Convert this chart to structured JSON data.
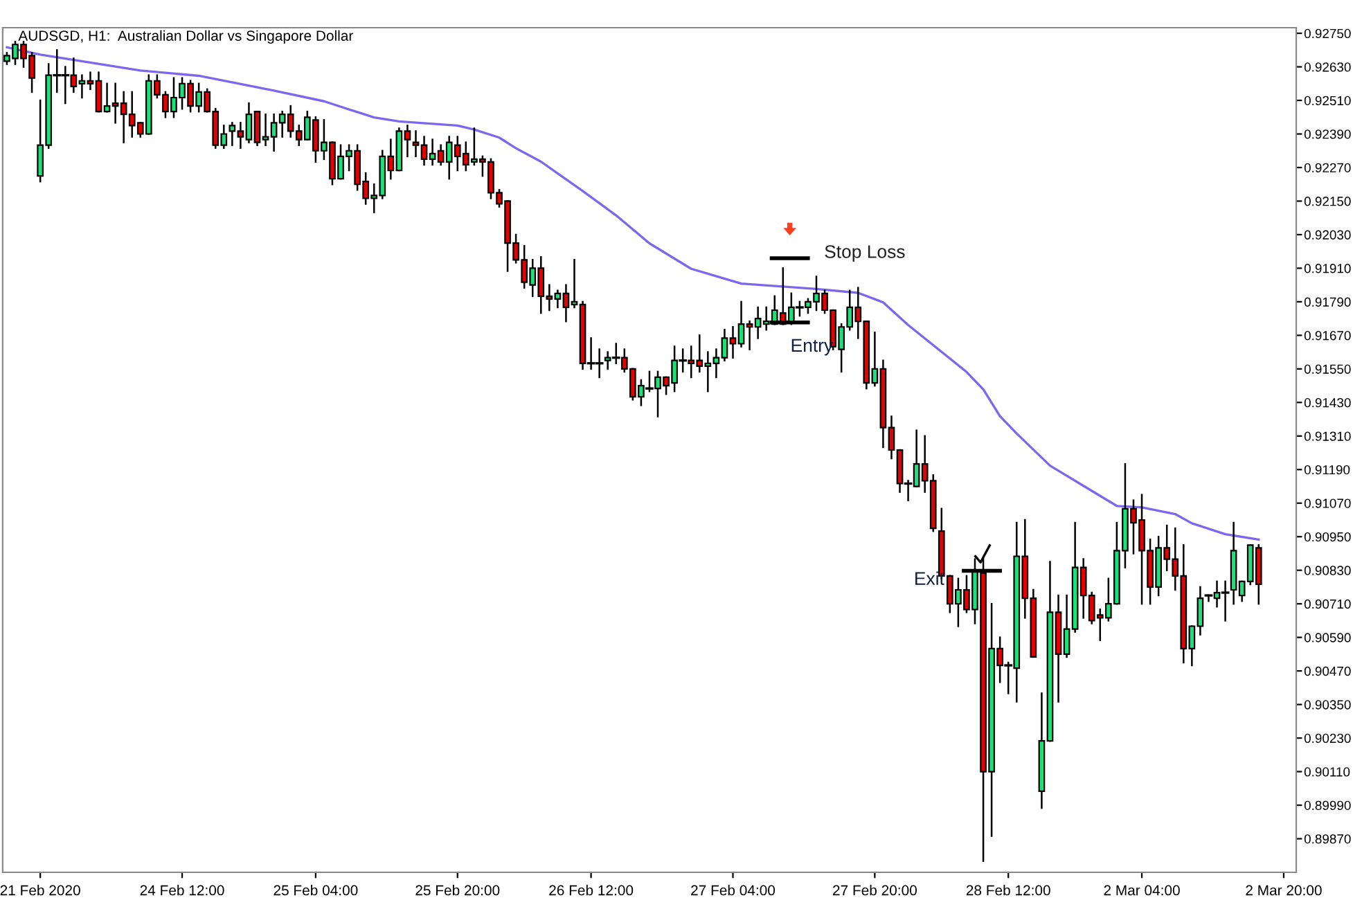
{
  "chart_data": {
    "type": "candlestick",
    "title": "AUDSGD, H1:  Australian Dollar vs Singapore Dollar",
    "categories": [
      null,
      null,
      null,
      null,
      "21 Feb 2020",
      null,
      null,
      null,
      null,
      null,
      null,
      null,
      null,
      null,
      null,
      null,
      null,
      null,
      null,
      null,
      null,
      "24 Feb 12:00",
      null,
      null,
      null,
      null,
      null,
      null,
      null,
      null,
      null,
      null,
      null,
      null,
      null,
      null,
      null,
      "25 Feb 04:00",
      null,
      null,
      null,
      null,
      null,
      null,
      null,
      null,
      null,
      null,
      null,
      null,
      null,
      null,
      null,
      null,
      "25 Feb 20:00",
      null,
      null,
      null,
      null,
      null,
      null,
      null,
      null,
      null,
      null,
      null,
      null,
      null,
      null,
      null,
      "26 Feb 12:00",
      null,
      null,
      null,
      null,
      null,
      null,
      null,
      null,
      null,
      null,
      null,
      null,
      null,
      null,
      null,
      null,
      "27 Feb 04:00",
      null,
      null,
      null,
      null,
      null,
      null,
      null,
      null,
      null,
      null,
      null,
      null,
      null,
      null,
      null,
      null,
      "27 Feb 20:00",
      null,
      null,
      null,
      null,
      null,
      null,
      null,
      null,
      null,
      null,
      null,
      null,
      null,
      null,
      null,
      "28 Feb 12:00",
      null,
      null,
      null,
      null,
      null,
      null,
      null,
      null,
      null,
      null,
      null,
      null,
      null,
      null,
      null,
      "2 Mar 04:00",
      null,
      null,
      null,
      null,
      null,
      null,
      null,
      null,
      null,
      null,
      null,
      null,
      null,
      null,
      null,
      null,
      "2 Mar 20:00",
      null
    ],
    "colors": [
      "#1ee07a",
      "#1ee07a",
      "#e60000",
      "#e60000",
      "#1ee07a",
      "#1ee07a",
      "#000000",
      "#000000",
      "#e60000",
      "#1ee07a",
      "#e60000",
      "#e60000",
      "#1ee07a",
      "#e60000",
      "#e60000",
      "#e60000",
      "#e60000",
      "#1ee07a",
      "#e60000",
      "#e60000",
      "#1ee07a",
      "#1ee07a",
      "#e60000",
      "#1ee07a",
      "#e60000",
      "#e60000",
      "#1ee07a",
      "#1ee07a",
      "#e60000",
      "#1ee07a",
      "#e60000",
      "#1ee07a",
      "#1ee07a",
      "#1ee07a",
      "#e60000",
      "#e60000",
      "#1ee07a",
      "#e60000",
      "#1ee07a",
      "#e60000",
      "#1ee07a",
      "#1ee07a",
      "#e60000",
      "#e60000",
      "#1ee07a",
      "#1ee07a",
      "#e60000",
      "#1ee07a",
      "#e60000",
      "#e60000",
      "#e60000",
      "#1ee07a",
      "#e60000",
      "#1ee07a",
      "#e60000",
      "#e60000",
      "#1ee07a",
      "#e60000",
      "#e60000",
      "#e60000",
      "#e60000",
      "#e60000",
      "#e60000",
      "#1ee07a",
      "#e60000",
      "#e60000",
      "#1ee07a",
      "#e60000",
      "#1ee07a",
      "#e60000",
      "#000000",
      "#000000",
      "#1ee07a",
      "#000000",
      "#e60000",
      "#e60000",
      "#1ee07a",
      "#000000",
      "#1ee07a",
      "#e60000",
      "#1ee07a",
      "#000000",
      "#e60000",
      "#e60000",
      "#1ee07a",
      "#1ee07a",
      "#1ee07a",
      "#e60000",
      "#1ee07a",
      "#e60000",
      "#1ee07a",
      "#1ee07a",
      "#1ee07a",
      "#e60000",
      "#1ee07a",
      "#000000",
      "#1ee07a",
      "#1ee07a",
      "#e60000",
      "#e60000",
      "#1ee07a",
      "#1ee07a",
      "#e60000",
      "#e60000",
      "#1ee07a",
      "#e60000",
      "#e60000",
      "#e60000",
      "#000000",
      "#1ee07a",
      "#e60000",
      "#e60000",
      "#e60000",
      "#e60000",
      "#1ee07a",
      "#e60000",
      "#1ee07a",
      "#e60000",
      "#1ee07a",
      "#e60000",
      "#000000",
      "#1ee07a",
      "#e60000",
      "#e60000",
      "#1ee07a",
      "#1ee07a",
      "#e60000",
      "#1ee07a",
      "#1ee07a",
      "#e60000",
      "#e60000",
      "#e60000",
      "#1ee07a",
      "#1ee07a",
      "#1ee07a",
      "#e60000",
      "#e60000",
      "#e60000",
      "#1ee07a",
      "#e60000",
      "#e60000",
      "#e60000",
      "#1ee07a",
      "#1ee07a",
      "#000000",
      "#1ee07a",
      "#000000",
      "#1ee07a",
      "#1ee07a",
      "#1ee07a",
      "#e60000",
      null,
      null,
      null,
      null
    ],
    "series": [
      {
        "type": "line",
        "color": "#7b68ee",
        "values": [
          0.927,
          null,
          null,
          null,
          0.92674,
          null,
          null,
          null,
          null,
          null,
          null,
          null,
          null,
          null,
          null,
          null,
          0.92617,
          null,
          null,
          null,
          null,
          null,
          null,
          0.92598,
          null,
          null,
          null,
          null,
          null,
          null,
          null,
          null,
          0.92545,
          null,
          null,
          null,
          null,
          null,
          0.92507,
          null,
          null,
          null,
          null,
          null,
          0.92449,
          null,
          null,
          0.92435,
          null,
          null,
          null,
          null,
          null,
          null,
          0.9242,
          null,
          0.92406,
          null,
          null,
          0.92377,
          null,
          0.92339,
          null,
          null,
          0.92291,
          null,
          null,
          null,
          null,
          0.92186,
          null,
          null,
          null,
          0.92099,
          null,
          null,
          null,
          0.91999,
          null,
          null,
          null,
          null,
          0.91908,
          null,
          null,
          null,
          null,
          null,
          0.91855,
          null,
          null,
          null,
          null,
          null,
          null,
          null,
          null,
          0.91836,
          null,
          null,
          null,
          null,
          0.91822,
          null,
          null,
          0.91788,
          null,
          null,
          0.91707,
          null,
          null,
          0.91635,
          null,
          null,
          null,
          0.91539,
          null,
          0.91477,
          null,
          0.91381,
          null,
          0.91319,
          null,
          null,
          null,
          0.91204,
          null,
          null,
          null,
          0.91132,
          null,
          null,
          null,
          0.9106,
          null,
          null,
          0.91055,
          null,
          null,
          null,
          0.91031,
          null,
          0.90998,
          null,
          null,
          null,
          0.90959,
          null,
          null,
          null,
          0.9094,
          null,
          null,
          null,
          null
        ]
      }
    ],
    "ohlc": [
      [
        0.9265,
        0.9268,
        0.9264,
        0.9267
      ],
      [
        0.9266,
        0.9272,
        0.9264,
        0.9271
      ],
      [
        0.9271,
        0.9272,
        0.9263,
        0.9266
      ],
      [
        0.9267,
        0.9268,
        0.9254,
        0.9259
      ],
      [
        0.9224,
        0.9251,
        0.9222,
        0.9235
      ],
      [
        0.9235,
        0.9264,
        0.9234,
        0.926
      ],
      [
        0.926,
        0.9269,
        0.9254,
        0.926
      ],
      [
        0.926,
        0.9263,
        0.925,
        0.926
      ],
      [
        0.926,
        0.9266,
        0.9254,
        0.9256
      ],
      [
        0.9257,
        0.926,
        0.9252,
        0.9258
      ],
      [
        0.9258,
        0.9261,
        0.9255,
        0.9257
      ],
      [
        0.9258,
        0.9261,
        0.9247,
        0.9247
      ],
      [
        0.9247,
        0.9257,
        0.9247,
        0.9249
      ],
      [
        0.925,
        0.9257,
        0.9243,
        0.9249
      ],
      [
        0.925,
        0.9254,
        0.9236,
        0.9246
      ],
      [
        0.9246,
        0.9254,
        0.9238,
        0.9242
      ],
      [
        0.9243,
        0.9243,
        0.9238,
        0.9239
      ],
      [
        0.9239,
        0.926,
        0.9239,
        0.9258
      ],
      [
        0.9258,
        0.926,
        0.9252,
        0.9253
      ],
      [
        0.9253,
        0.9254,
        0.9245,
        0.9247
      ],
      [
        0.9247,
        0.9259,
        0.9245,
        0.9252
      ],
      [
        0.9252,
        0.9259,
        0.9248,
        0.9257
      ],
      [
        0.9257,
        0.9258,
        0.9247,
        0.9249
      ],
      [
        0.9249,
        0.9257,
        0.9247,
        0.9254
      ],
      [
        0.9254,
        0.9255,
        0.9247,
        0.9247
      ],
      [
        0.9247,
        0.9248,
        0.9234,
        0.9235
      ],
      [
        0.9235,
        0.9242,
        0.9234,
        0.9239
      ],
      [
        0.924,
        0.9243,
        0.9235,
        0.9242
      ],
      [
        0.924,
        0.9243,
        0.9234,
        0.9238
      ],
      [
        0.9237,
        0.925,
        0.9236,
        0.9246
      ],
      [
        0.9247,
        0.9247,
        0.9235,
        0.9236
      ],
      [
        0.9237,
        0.9246,
        0.9235,
        0.9238
      ],
      [
        0.9238,
        0.9246,
        0.9233,
        0.9243
      ],
      [
        0.9243,
        0.9247,
        0.9238,
        0.9246
      ],
      [
        0.9246,
        0.9249,
        0.9238,
        0.924
      ],
      [
        0.924,
        0.9242,
        0.9235,
        0.9237
      ],
      [
        0.9237,
        0.9247,
        0.9237,
        0.9245
      ],
      [
        0.9244,
        0.9245,
        0.9229,
        0.9233
      ],
      [
        0.9233,
        0.9244,
        0.923,
        0.9236
      ],
      [
        0.9236,
        0.9236,
        0.9221,
        0.9223
      ],
      [
        0.9223,
        0.9235,
        0.9223,
        0.9231
      ],
      [
        0.9231,
        0.9235,
        0.9226,
        0.9233
      ],
      [
        0.9233,
        0.9235,
        0.9219,
        0.9221
      ],
      [
        0.9222,
        0.9225,
        0.9214,
        0.9216
      ],
      [
        0.9216,
        0.9221,
        0.9211,
        0.9217
      ],
      [
        0.9217,
        0.9233,
        0.9216,
        0.9231
      ],
      [
        0.9231,
        0.9237,
        0.9223,
        0.9226
      ],
      [
        0.9226,
        0.9241,
        0.9226,
        0.924
      ],
      [
        0.924,
        0.9242,
        0.9231,
        0.9237
      ],
      [
        0.9236,
        0.924,
        0.9231,
        0.9235
      ],
      [
        0.9235,
        0.9238,
        0.9228,
        0.923
      ],
      [
        0.923,
        0.9237,
        0.9228,
        0.9232
      ],
      [
        0.9233,
        0.9235,
        0.9228,
        0.9229
      ],
      [
        0.9229,
        0.9238,
        0.9223,
        0.9236
      ],
      [
        0.9235,
        0.9238,
        0.9226,
        0.9231
      ],
      [
        0.9232,
        0.9236,
        0.9226,
        0.9228
      ],
      [
        0.9229,
        0.9241,
        0.9228,
        0.923
      ],
      [
        0.923,
        0.9231,
        0.9224,
        0.9229
      ],
      [
        0.9229,
        0.923,
        0.9216,
        0.9218
      ],
      [
        0.9218,
        0.9219,
        0.9213,
        0.9214
      ],
      [
        0.9215,
        0.9215,
        0.919,
        0.92
      ],
      [
        0.92,
        0.9203,
        0.9193,
        0.9194
      ],
      [
        0.9194,
        0.9199,
        0.9184,
        0.9186
      ],
      [
        0.9185,
        0.9194,
        0.9181,
        0.9191
      ],
      [
        0.9191,
        0.9195,
        0.9175,
        0.9181
      ],
      [
        0.9181,
        0.9185,
        0.9176,
        0.918
      ],
      [
        0.918,
        0.9183,
        0.9177,
        0.9182
      ],
      [
        0.9182,
        0.9185,
        0.9172,
        0.9177
      ],
      [
        0.9178,
        0.9194,
        0.9177,
        0.9179
      ],
      [
        0.9178,
        0.9179,
        0.9155,
        0.9157
      ],
      [
        0.9157,
        0.9166,
        0.9155,
        0.9157
      ],
      [
        0.9157,
        0.9162,
        0.9152,
        0.9157
      ],
      [
        0.9158,
        0.9161,
        0.9155,
        0.9159
      ],
      [
        0.9159,
        0.9164,
        0.9157,
        0.9159
      ],
      [
        0.9159,
        0.9162,
        0.9154,
        0.9155
      ],
      [
        0.9155,
        0.9155,
        0.9144,
        0.9145
      ],
      [
        0.9145,
        0.9151,
        0.9142,
        0.9149
      ],
      [
        0.9148,
        0.9154,
        0.9147,
        0.9148
      ],
      [
        0.9148,
        0.9154,
        0.9138,
        0.9152
      ],
      [
        0.9152,
        0.9152,
        0.9146,
        0.9149
      ],
      [
        0.915,
        0.9163,
        0.9147,
        0.9158
      ],
      [
        0.9158,
        0.9162,
        0.9154,
        0.9158
      ],
      [
        0.9158,
        0.9163,
        0.9152,
        0.9157
      ],
      [
        0.9158,
        0.9167,
        0.9154,
        0.9156
      ],
      [
        0.9156,
        0.9161,
        0.9147,
        0.9157
      ],
      [
        0.9157,
        0.9162,
        0.9152,
        0.9159
      ],
      [
        0.9159,
        0.9169,
        0.9158,
        0.9166
      ],
      [
        0.9166,
        0.917,
        0.9159,
        0.9164
      ],
      [
        0.9164,
        0.9179,
        0.9163,
        0.9171
      ],
      [
        0.9171,
        0.9172,
        0.9162,
        0.917
      ],
      [
        0.917,
        0.9177,
        0.9166,
        0.9173
      ],
      [
        0.9171,
        0.9177,
        0.9169,
        0.9172
      ],
      [
        0.9171,
        0.9181,
        0.9171,
        0.9176
      ],
      [
        0.9175,
        0.9191,
        0.9171,
        0.9171
      ],
      [
        0.9172,
        0.9182,
        0.9171,
        0.9177
      ],
      [
        0.9177,
        0.9179,
        0.9174,
        0.9177
      ],
      [
        0.9177,
        0.918,
        0.9175,
        0.9179
      ],
      [
        0.9179,
        0.9188,
        0.9176,
        0.9182
      ],
      [
        0.9182,
        0.9183,
        0.9175,
        0.9176
      ],
      [
        0.9176,
        0.9176,
        0.9162,
        0.9163
      ],
      [
        0.9162,
        0.9171,
        0.9154,
        0.917
      ],
      [
        0.917,
        0.9183,
        0.9169,
        0.9177
      ],
      [
        0.9177,
        0.9184,
        0.9166,
        0.9172
      ],
      [
        0.9172,
        0.9172,
        0.9148,
        0.915
      ],
      [
        0.915,
        0.9168,
        0.9149,
        0.9155
      ],
      [
        0.9155,
        0.9158,
        0.9127,
        0.9134
      ],
      [
        0.9134,
        0.9138,
        0.9123,
        0.9126
      ],
      [
        0.9126,
        0.9126,
        0.9111,
        0.9114
      ],
      [
        0.9114,
        0.9115,
        0.9108,
        0.9114
      ],
      [
        0.9113,
        0.9133,
        0.9113,
        0.9121
      ],
      [
        0.9121,
        0.9131,
        0.9111,
        0.9115
      ],
      [
        0.9115,
        0.9117,
        0.9097,
        0.9098
      ],
      [
        0.9097,
        0.9105,
        0.908,
        0.9081
      ],
      [
        0.9081,
        0.9081,
        0.9068,
        0.9071
      ],
      [
        0.9071,
        0.908,
        0.9063,
        0.9076
      ],
      [
        0.9076,
        0.9081,
        0.9068,
        0.9069
      ],
      [
        0.9069,
        0.9087,
        0.9064,
        0.9083
      ],
      [
        0.9082,
        0.9087,
        0.8979,
        0.9011
      ],
      [
        0.9011,
        0.9071,
        0.8988,
        0.9055
      ],
      [
        0.9055,
        0.9059,
        0.9043,
        0.9049
      ],
      [
        0.9049,
        0.905,
        0.9039,
        0.9049
      ],
      [
        0.9048,
        0.91,
        0.9036,
        0.9088
      ],
      [
        0.9088,
        0.9101,
        0.9066,
        0.9073
      ],
      [
        0.9073,
        0.9076,
        0.9052,
        0.9052
      ],
      [
        0.9004,
        0.9039,
        0.8998,
        0.9022
      ],
      [
        0.9022,
        0.9086,
        0.9022,
        0.9068
      ],
      [
        0.9068,
        0.9074,
        0.9036,
        0.9053
      ],
      [
        0.9053,
        0.9074,
        0.9052,
        0.9062
      ],
      [
        0.9062,
        0.91,
        0.9061,
        0.9084
      ],
      [
        0.9084,
        0.9087,
        0.9066,
        0.9074
      ],
      [
        0.9074,
        0.9075,
        0.9064,
        0.9065
      ],
      [
        0.9067,
        0.9069,
        0.9058,
        0.9066
      ],
      [
        0.9066,
        0.908,
        0.9065,
        0.9071
      ],
      [
        0.9071,
        0.91,
        0.9071,
        0.909
      ],
      [
        0.909,
        0.9121,
        0.9084,
        0.9105
      ],
      [
        0.9105,
        0.9108,
        0.9089,
        0.91
      ],
      [
        0.9101,
        0.911,
        0.9071,
        0.909
      ],
      [
        0.909,
        0.9094,
        0.9071,
        0.9077
      ],
      [
        0.9077,
        0.9095,
        0.9074,
        0.9091
      ],
      [
        0.9091,
        0.9099,
        0.9083,
        0.9087
      ],
      [
        0.9087,
        0.9098,
        0.9076,
        0.9081
      ],
      [
        0.9081,
        0.9092,
        0.905,
        0.9055
      ],
      [
        0.9055,
        0.9063,
        0.9049,
        0.9063
      ],
      [
        0.9063,
        0.9077,
        0.906,
        0.9073
      ],
      [
        0.9074,
        0.9074,
        0.9072,
        0.9074
      ],
      [
        0.9073,
        0.9079,
        0.907,
        0.9075
      ],
      [
        0.9075,
        0.9079,
        0.9065,
        0.9075
      ],
      [
        0.9076,
        0.91,
        0.9071,
        0.909
      ],
      [
        0.9074,
        0.9079,
        0.9072,
        0.9079
      ],
      [
        0.9079,
        0.9092,
        0.9078,
        0.9092
      ],
      [
        0.9091,
        0.9092,
        0.9071,
        0.9078
      ],
      null,
      null,
      null,
      null
    ],
    "ylim": [
      0.8975,
      0.9277
    ],
    "yticks": [
      {
        "value": 0.9275,
        "label": "0.92750"
      },
      {
        "value": 0.9263,
        "label": "0.92630"
      },
      {
        "value": 0.9251,
        "label": "0.92510"
      },
      {
        "value": 0.9239,
        "label": "0.92390"
      },
      {
        "value": 0.9227,
        "label": "0.92270"
      },
      {
        "value": 0.9215,
        "label": "0.92150"
      },
      {
        "value": 0.9203,
        "label": "0.92030"
      },
      {
        "value": 0.9191,
        "label": "0.91910"
      },
      {
        "value": 0.9179,
        "label": "0.91790"
      },
      {
        "value": 0.9167,
        "label": "0.91670"
      },
      {
        "value": 0.9155,
        "label": "0.91550"
      },
      {
        "value": 0.9143,
        "label": "0.91430"
      },
      {
        "value": 0.9131,
        "label": "0.91310"
      },
      {
        "value": 0.9119,
        "label": "0.91190"
      },
      {
        "value": 0.9107,
        "label": "0.91070"
      },
      {
        "value": 0.9095,
        "label": "0.90950"
      },
      {
        "value": 0.9083,
        "label": "0.90830"
      },
      {
        "value": 0.9071,
        "label": "0.90710"
      },
      {
        "value": 0.9059,
        "label": "0.90590"
      },
      {
        "value": 0.9047,
        "label": "0.90470"
      },
      {
        "value": 0.9035,
        "label": "0.90350"
      },
      {
        "value": 0.9023,
        "label": "0.90230"
      },
      {
        "value": 0.9011,
        "label": "0.90110"
      },
      {
        "value": 0.8999,
        "label": "0.89990"
      },
      {
        "value": 0.8987,
        "label": "0.89870"
      }
    ],
    "annotations": [
      "Stop Loss",
      "Entry",
      "Exit"
    ],
    "grid": false,
    "legend": false
  }
}
